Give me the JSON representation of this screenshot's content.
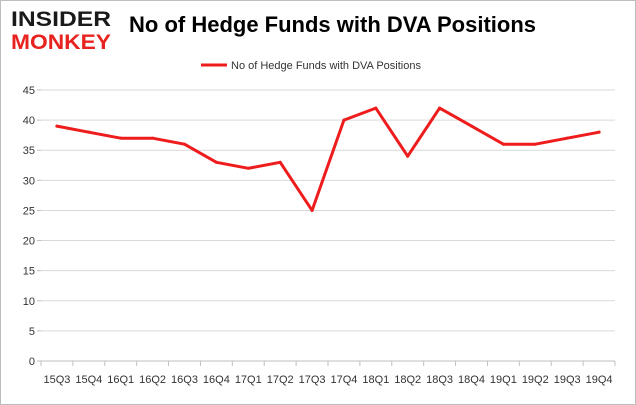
{
  "brand": {
    "line1": "INSIDER",
    "line2": "MONKEY",
    "color_dark": "#1a1a1a",
    "color_accent": "#e8231f"
  },
  "chart_data": {
    "type": "line",
    "title": "No of Hedge Funds with DVA Positions",
    "categories": [
      "15Q3",
      "15Q4",
      "16Q1",
      "16Q2",
      "16Q3",
      "16Q4",
      "17Q1",
      "17Q2",
      "17Q3",
      "17Q4",
      "18Q1",
      "18Q2",
      "18Q3",
      "18Q4",
      "19Q1",
      "19Q2",
      "19Q3",
      "19Q4"
    ],
    "series": [
      {
        "name": "No of Hedge Funds with DVA Positions",
        "values": [
          39,
          38,
          37,
          37,
          36,
          33,
          32,
          33,
          25,
          40,
          42,
          34,
          42,
          39,
          36,
          36,
          37,
          38
        ],
        "color": "#ee1c1c"
      }
    ],
    "xlabel": "",
    "ylabel": "",
    "ylim": [
      0,
      45
    ],
    "yticks": [
      0,
      5,
      10,
      15,
      20,
      25,
      30,
      35,
      40,
      45
    ],
    "grid": true,
    "legend_position": "top-center",
    "grid_color": "#d9d9d9"
  }
}
